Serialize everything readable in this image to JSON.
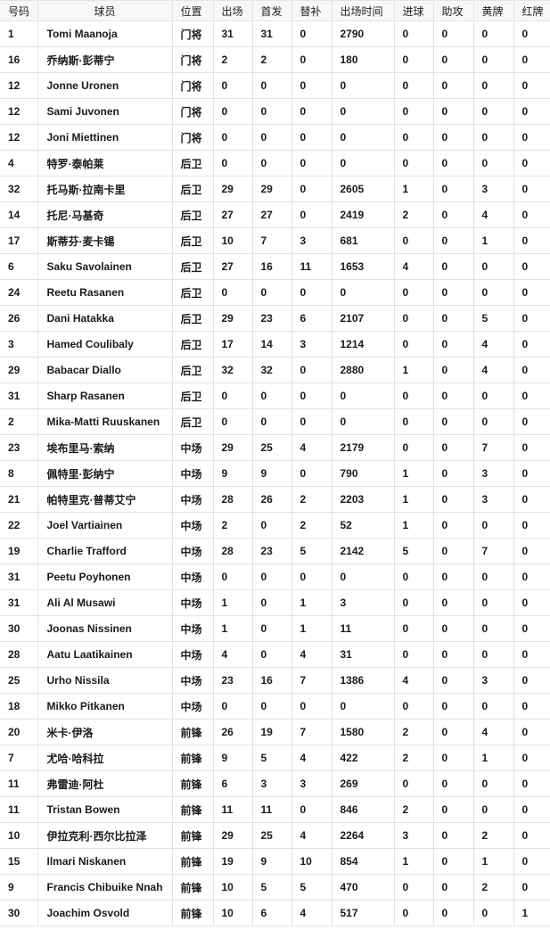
{
  "table": {
    "headers": [
      "号码",
      "球员",
      "位置",
      "出场",
      "首发",
      "替补",
      "出场时间",
      "进球",
      "助攻",
      "黄牌",
      "红牌"
    ],
    "rows": [
      [
        "1",
        "Tomi Maanoja",
        "门将",
        "31",
        "31",
        "0",
        "2790",
        "0",
        "0",
        "0",
        "0"
      ],
      [
        "16",
        "乔纳斯·彭蒂宁",
        "门将",
        "2",
        "2",
        "0",
        "180",
        "0",
        "0",
        "0",
        "0"
      ],
      [
        "12",
        "Jonne Uronen",
        "门将",
        "0",
        "0",
        "0",
        "0",
        "0",
        "0",
        "0",
        "0"
      ],
      [
        "12",
        "Sami Juvonen",
        "门将",
        "0",
        "0",
        "0",
        "0",
        "0",
        "0",
        "0",
        "0"
      ],
      [
        "12",
        "Joni Miettinen",
        "门将",
        "0",
        "0",
        "0",
        "0",
        "0",
        "0",
        "0",
        "0"
      ],
      [
        "4",
        "特罗·泰帕莱",
        "后卫",
        "0",
        "0",
        "0",
        "0",
        "0",
        "0",
        "0",
        "0"
      ],
      [
        "32",
        "托马斯·拉南卡里",
        "后卫",
        "29",
        "29",
        "0",
        "2605",
        "1",
        "0",
        "3",
        "0"
      ],
      [
        "14",
        "托尼·马基奇",
        "后卫",
        "27",
        "27",
        "0",
        "2419",
        "2",
        "0",
        "4",
        "0"
      ],
      [
        "17",
        "斯蒂芬·麦卡锡",
        "后卫",
        "10",
        "7",
        "3",
        "681",
        "0",
        "0",
        "1",
        "0"
      ],
      [
        "6",
        "Saku Savolainen",
        "后卫",
        "27",
        "16",
        "11",
        "1653",
        "4",
        "0",
        "0",
        "0"
      ],
      [
        "24",
        "Reetu Rasanen",
        "后卫",
        "0",
        "0",
        "0",
        "0",
        "0",
        "0",
        "0",
        "0"
      ],
      [
        "26",
        "Dani Hatakka",
        "后卫",
        "29",
        "23",
        "6",
        "2107",
        "0",
        "0",
        "5",
        "0"
      ],
      [
        "3",
        "Hamed Coulibaly",
        "后卫",
        "17",
        "14",
        "3",
        "1214",
        "0",
        "0",
        "4",
        "0"
      ],
      [
        "29",
        "Babacar Diallo",
        "后卫",
        "32",
        "32",
        "0",
        "2880",
        "1",
        "0",
        "4",
        "0"
      ],
      [
        "31",
        "Sharp Rasanen",
        "后卫",
        "0",
        "0",
        "0",
        "0",
        "0",
        "0",
        "0",
        "0"
      ],
      [
        "2",
        "Mika-Matti Ruuskanen",
        "后卫",
        "0",
        "0",
        "0",
        "0",
        "0",
        "0",
        "0",
        "0"
      ],
      [
        "23",
        "埃布里马·索纳",
        "中场",
        "29",
        "25",
        "4",
        "2179",
        "0",
        "0",
        "7",
        "0"
      ],
      [
        "8",
        "佩特里·彭纳宁",
        "中场",
        "9",
        "9",
        "0",
        "790",
        "1",
        "0",
        "3",
        "0"
      ],
      [
        "21",
        "帕特里克·普蒂艾宁",
        "中场",
        "28",
        "26",
        "2",
        "2203",
        "1",
        "0",
        "3",
        "0"
      ],
      [
        "22",
        "Joel Vartiainen",
        "中场",
        "2",
        "0",
        "2",
        "52",
        "1",
        "0",
        "0",
        "0"
      ],
      [
        "19",
        "Charlie Trafford",
        "中场",
        "28",
        "23",
        "5",
        "2142",
        "5",
        "0",
        "7",
        "0"
      ],
      [
        "31",
        "Peetu Poyhonen",
        "中场",
        "0",
        "0",
        "0",
        "0",
        "0",
        "0",
        "0",
        "0"
      ],
      [
        "31",
        "Ali Al Musawi",
        "中场",
        "1",
        "0",
        "1",
        "3",
        "0",
        "0",
        "0",
        "0"
      ],
      [
        "30",
        "Joonas Nissinen",
        "中场",
        "1",
        "0",
        "1",
        "11",
        "0",
        "0",
        "0",
        "0"
      ],
      [
        "28",
        "Aatu Laatikainen",
        "中场",
        "4",
        "0",
        "4",
        "31",
        "0",
        "0",
        "0",
        "0"
      ],
      [
        "25",
        "Urho Nissila",
        "中场",
        "23",
        "16",
        "7",
        "1386",
        "4",
        "0",
        "3",
        "0"
      ],
      [
        "18",
        "Mikko Pitkanen",
        "中场",
        "0",
        "0",
        "0",
        "0",
        "0",
        "0",
        "0",
        "0"
      ],
      [
        "20",
        "米卡·伊洛",
        "前锋",
        "26",
        "19",
        "7",
        "1580",
        "2",
        "0",
        "4",
        "0"
      ],
      [
        "7",
        "尤哈·哈科拉",
        "前锋",
        "9",
        "5",
        "4",
        "422",
        "2",
        "0",
        "1",
        "0"
      ],
      [
        "11",
        "弗雷迪·阿杜",
        "前锋",
        "6",
        "3",
        "3",
        "269",
        "0",
        "0",
        "0",
        "0"
      ],
      [
        "11",
        "Tristan Bowen",
        "前锋",
        "11",
        "11",
        "0",
        "846",
        "2",
        "0",
        "0",
        "0"
      ],
      [
        "10",
        "伊拉克利·西尔比拉泽",
        "前锋",
        "29",
        "25",
        "4",
        "2264",
        "3",
        "0",
        "2",
        "0"
      ],
      [
        "15",
        "Ilmari Niskanen",
        "前锋",
        "19",
        "9",
        "10",
        "854",
        "1",
        "0",
        "1",
        "0"
      ],
      [
        "9",
        "Francis Chibuike Nnah",
        "前锋",
        "10",
        "5",
        "5",
        "470",
        "0",
        "0",
        "2",
        "0"
      ],
      [
        "30",
        "Joachim Osvold",
        "前锋",
        "10",
        "6",
        "4",
        "517",
        "0",
        "0",
        "0",
        "1"
      ]
    ]
  }
}
